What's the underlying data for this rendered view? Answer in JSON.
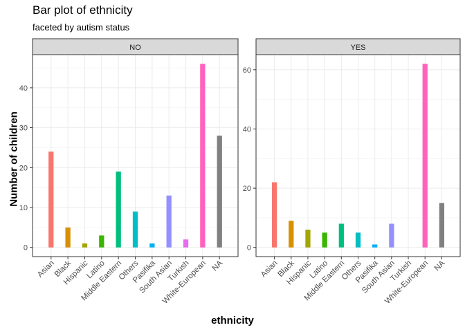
{
  "title": "Bar plot of ethnicity",
  "subtitle": "faceted by autism status",
  "xlabel": "ethnicity",
  "ylabel": "Number of children",
  "chart_data": [
    {
      "type": "bar",
      "facet": "NO",
      "categories": [
        "Asian",
        "Black",
        "Hispanic",
        "Latino",
        "Middle Eastern",
        "Others",
        "Pasifika",
        "South Asian",
        "Turkish",
        "White-European",
        "NA"
      ],
      "values": [
        24,
        5,
        1,
        3,
        19,
        9,
        1,
        13,
        2,
        46,
        28
      ],
      "yticks": [
        0,
        10,
        20,
        30,
        40
      ],
      "ylim": [
        -2.3,
        48.3
      ],
      "grid": true
    },
    {
      "type": "bar",
      "facet": "YES",
      "categories": [
        "Asian",
        "Black",
        "Hispanic",
        "Latino",
        "Middle Eastern",
        "Others",
        "Pasifika",
        "South Asian",
        "Turkish",
        "White-European",
        "NA"
      ],
      "values": [
        22,
        9,
        6,
        5,
        8,
        5,
        1,
        8,
        0,
        62,
        15
      ],
      "yticks": [
        0,
        20,
        40,
        60
      ],
      "ylim": [
        -3.1,
        65.1
      ],
      "grid": true
    }
  ],
  "colors": [
    "#F8766D",
    "#D89000",
    "#A3A500",
    "#39B600",
    "#00BF7D",
    "#00BFC4",
    "#00B0F6",
    "#9590FF",
    "#E76BF3",
    "#FF62BC",
    "#808080"
  ]
}
